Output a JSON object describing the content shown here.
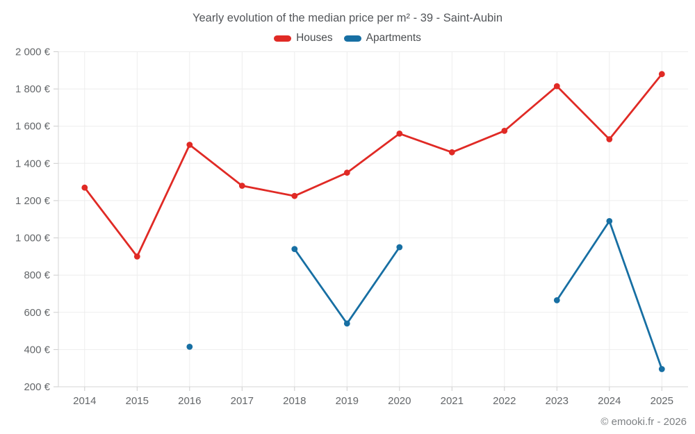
{
  "footer": {
    "credit": "© emooki.fr - 2026"
  },
  "chart_data": {
    "type": "line",
    "title": "Yearly evolution of the median price per m² - 39 - Saint-Aubin",
    "categories": [
      "2014",
      "2015",
      "2016",
      "2017",
      "2018",
      "2019",
      "2020",
      "2021",
      "2022",
      "2023",
      "2024",
      "2025"
    ],
    "series": [
      {
        "name": "Houses",
        "color": "#e02a25",
        "values": [
          1270,
          900,
          1500,
          1280,
          1225,
          1350,
          1560,
          1460,
          1575,
          1815,
          1530,
          1880
        ]
      },
      {
        "name": "Apartments",
        "color": "#176fa3",
        "values": [
          null,
          null,
          415,
          null,
          940,
          540,
          950,
          null,
          null,
          665,
          1090,
          295
        ]
      }
    ],
    "xlabel": "",
    "ylabel": "",
    "ylim": [
      200,
      2000
    ],
    "ytick_step": 200,
    "ytick_suffix": " €",
    "grid": true,
    "legend_position": "top",
    "marker_radius": 4.4,
    "line_width": 2.8,
    "grid_color": "#ededed",
    "axis_color": "#d5d5d5",
    "tick_color": "#cccccc"
  }
}
